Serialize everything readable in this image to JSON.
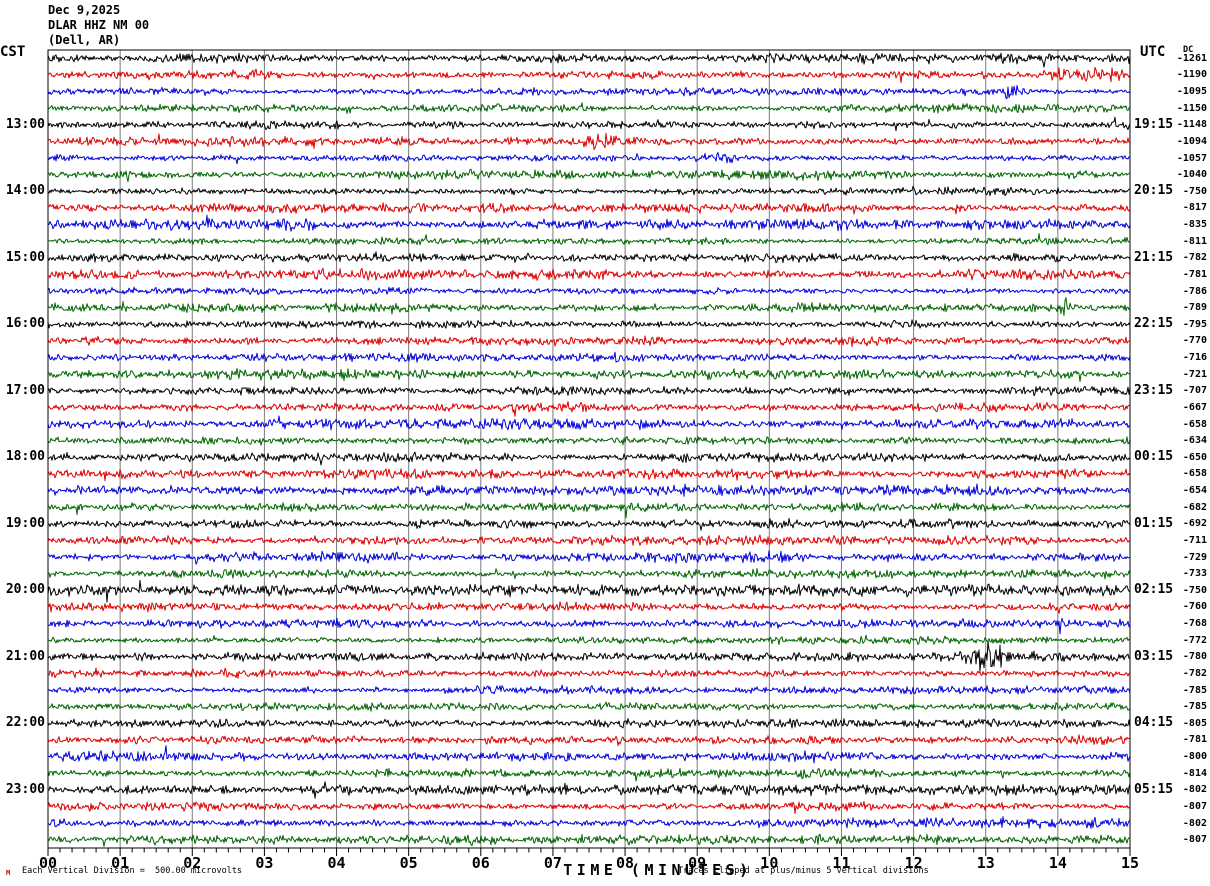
{
  "header": {
    "date": "Dec 9,2025",
    "station": "DLAR HHZ NM 00",
    "location": "(Dell, AR)"
  },
  "axes": {
    "left_header": "CST",
    "right_header": "UTC",
    "dc_header": "DC",
    "x_title": "TIME (MINUTES)",
    "x_tick_labels": [
      "00",
      "01",
      "02",
      "03",
      "04",
      "05",
      "06",
      "07",
      "08",
      "09",
      "10",
      "11",
      "12",
      "13",
      "14",
      "15"
    ],
    "minor_ticks_per_minute": 6
  },
  "footer": {
    "marker": "M",
    "scale_note": "Each Vertical Division =  500.00 microvolts",
    "clip_note": "Traces clipped at plus/minus 5 vertical divisions"
  },
  "colors": {
    "black": "#000000",
    "red": "#dd0000",
    "blue": "#0000dd",
    "green": "#006400",
    "grid": "#7a7a7a",
    "border": "#000000",
    "background": "#ffffff",
    "marker": "#cc0000"
  },
  "chart_data": {
    "type": "line",
    "subtype": "helicorder-seismogram",
    "title": "DLAR HHZ NM 00 (Dell, AR) Dec 9,2025",
    "xlabel": "TIME (MINUTES)",
    "x_range": [
      0,
      15
    ],
    "minutes_per_row": 15,
    "grid": "vertical-every-minute",
    "row_color_cycle": [
      "black",
      "red",
      "blue",
      "green"
    ],
    "rows": [
      {
        "left_label": null,
        "right_label": null,
        "dc": -1261,
        "color": "black"
      },
      {
        "left_label": null,
        "right_label": null,
        "dc": -1190,
        "color": "red"
      },
      {
        "left_label": null,
        "right_label": null,
        "dc": -1095,
        "color": "blue"
      },
      {
        "left_label": null,
        "right_label": null,
        "dc": -1150,
        "color": "green"
      },
      {
        "left_label": "13:00",
        "right_label": "19:15",
        "dc": -1148,
        "color": "black"
      },
      {
        "left_label": null,
        "right_label": null,
        "dc": -1094,
        "color": "red"
      },
      {
        "left_label": null,
        "right_label": null,
        "dc": -1057,
        "color": "blue"
      },
      {
        "left_label": null,
        "right_label": null,
        "dc": -1040,
        "color": "green"
      },
      {
        "left_label": "14:00",
        "right_label": "20:15",
        "dc": -750,
        "color": "black"
      },
      {
        "left_label": null,
        "right_label": null,
        "dc": -817,
        "color": "red"
      },
      {
        "left_label": null,
        "right_label": null,
        "dc": -835,
        "color": "blue"
      },
      {
        "left_label": null,
        "right_label": null,
        "dc": -811,
        "color": "green"
      },
      {
        "left_label": "15:00",
        "right_label": "21:15",
        "dc": -782,
        "color": "black"
      },
      {
        "left_label": null,
        "right_label": null,
        "dc": -781,
        "color": "red"
      },
      {
        "left_label": null,
        "right_label": null,
        "dc": -786,
        "color": "blue"
      },
      {
        "left_label": null,
        "right_label": null,
        "dc": -789,
        "color": "green"
      },
      {
        "left_label": "16:00",
        "right_label": "22:15",
        "dc": -795,
        "color": "black"
      },
      {
        "left_label": null,
        "right_label": null,
        "dc": -770,
        "color": "red"
      },
      {
        "left_label": null,
        "right_label": null,
        "dc": -716,
        "color": "blue"
      },
      {
        "left_label": null,
        "right_label": null,
        "dc": -721,
        "color": "green"
      },
      {
        "left_label": "17:00",
        "right_label": "23:15",
        "dc": -707,
        "color": "black"
      },
      {
        "left_label": null,
        "right_label": null,
        "dc": -667,
        "color": "red"
      },
      {
        "left_label": null,
        "right_label": null,
        "dc": -658,
        "color": "blue"
      },
      {
        "left_label": null,
        "right_label": null,
        "dc": -634,
        "color": "green"
      },
      {
        "left_label": "18:00",
        "right_label": "00:15",
        "dc": -650,
        "color": "black"
      },
      {
        "left_label": null,
        "right_label": null,
        "dc": -658,
        "color": "red"
      },
      {
        "left_label": null,
        "right_label": null,
        "dc": -654,
        "color": "blue"
      },
      {
        "left_label": null,
        "right_label": null,
        "dc": -682,
        "color": "green"
      },
      {
        "left_label": "19:00",
        "right_label": "01:15",
        "dc": -692,
        "color": "black"
      },
      {
        "left_label": null,
        "right_label": null,
        "dc": -711,
        "color": "red"
      },
      {
        "left_label": null,
        "right_label": null,
        "dc": -729,
        "color": "blue"
      },
      {
        "left_label": null,
        "right_label": null,
        "dc": -733,
        "color": "green"
      },
      {
        "left_label": "20:00",
        "right_label": "02:15",
        "dc": -750,
        "color": "black"
      },
      {
        "left_label": null,
        "right_label": null,
        "dc": -760,
        "color": "red"
      },
      {
        "left_label": null,
        "right_label": null,
        "dc": -768,
        "color": "blue"
      },
      {
        "left_label": null,
        "right_label": null,
        "dc": -772,
        "color": "green"
      },
      {
        "left_label": "21:00",
        "right_label": "03:15",
        "dc": -780,
        "color": "black"
      },
      {
        "left_label": null,
        "right_label": null,
        "dc": -782,
        "color": "red"
      },
      {
        "left_label": null,
        "right_label": null,
        "dc": -785,
        "color": "blue"
      },
      {
        "left_label": null,
        "right_label": null,
        "dc": -785,
        "color": "green"
      },
      {
        "left_label": "22:00",
        "right_label": "04:15",
        "dc": -805,
        "color": "black"
      },
      {
        "left_label": null,
        "right_label": null,
        "dc": -781,
        "color": "red"
      },
      {
        "left_label": null,
        "right_label": null,
        "dc": -800,
        "color": "blue"
      },
      {
        "left_label": null,
        "right_label": null,
        "dc": -814,
        "color": "green"
      },
      {
        "left_label": "23:00",
        "right_label": "05:15",
        "dc": -802,
        "color": "black"
      },
      {
        "left_label": null,
        "right_label": null,
        "dc": -807,
        "color": "red"
      },
      {
        "left_label": null,
        "right_label": null,
        "dc": -802,
        "color": "blue"
      },
      {
        "left_label": null,
        "right_label": null,
        "dc": -807,
        "color": "green"
      }
    ],
    "events": [
      {
        "row": 1,
        "center": 14.6,
        "sigma": 0.5,
        "amp": 2.3,
        "note": "elevated red noise at end of 12:15 trace"
      },
      {
        "row": 2,
        "center": 13.35,
        "sigma": 0.05,
        "amp": 5.0,
        "note": "sharp blue spike near minute 13.3"
      },
      {
        "row": 5,
        "center": 4.8,
        "sigma": 0.25,
        "amp": 1.7,
        "note": "small red burst"
      },
      {
        "row": 5,
        "center": 7.7,
        "sigma": 0.2,
        "amp": 2.2,
        "note": "red burst near minute 7.7"
      },
      {
        "row": 6,
        "center": 9.3,
        "sigma": 0.3,
        "amp": 1.8,
        "note": "blue burst near minute 9.3"
      },
      {
        "row": 9,
        "center": 12.6,
        "sigma": 0.05,
        "amp": 2.8,
        "note": "small red spike"
      },
      {
        "row": 15,
        "center": 14.1,
        "sigma": 0.04,
        "amp": 3.2,
        "note": "small green spike near minute 14.1"
      },
      {
        "row": 36,
        "center": 13.05,
        "sigma": 0.12,
        "amp": 3.6,
        "note": "black event burst on 21:00 trace"
      },
      {
        "row": 36,
        "center": 13.1,
        "sigma": 0.45,
        "amp": 1.6,
        "note": "coda of 21:00 black event"
      }
    ]
  }
}
